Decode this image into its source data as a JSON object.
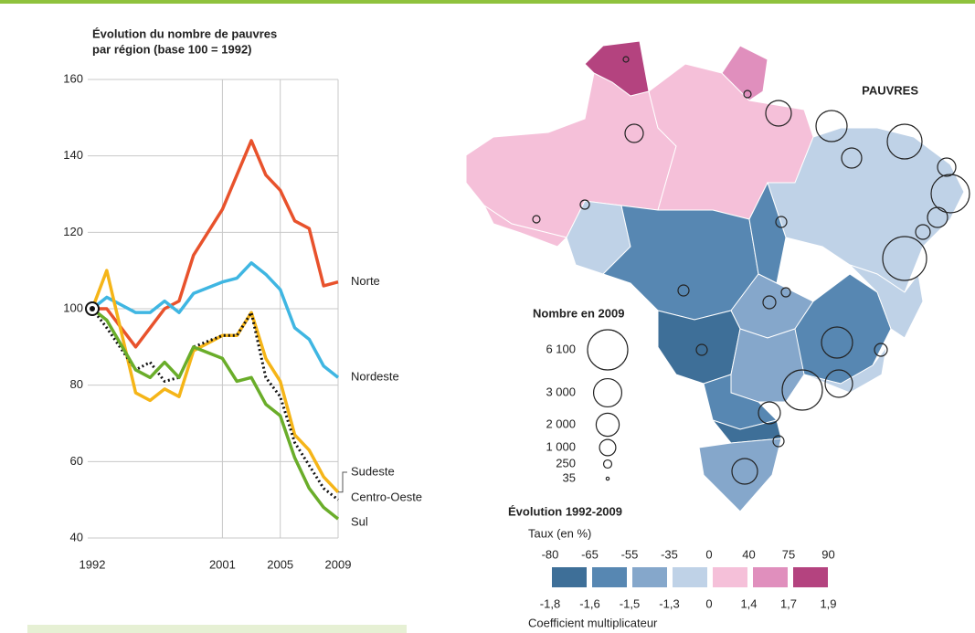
{
  "chart_data": {
    "type": "line",
    "title_lines": [
      "Évolution du nombre de pauvres",
      "par région (base 100 = 1992)"
    ],
    "x": [
      1992,
      1993,
      1995,
      1996,
      1997,
      1998,
      1999,
      2001,
      2002,
      2003,
      2004,
      2005,
      2006,
      2007,
      2008,
      2009
    ],
    "xlim": [
      1992,
      2009
    ],
    "xticks": [
      1992,
      2001,
      2005,
      2009
    ],
    "ylim": [
      40,
      160
    ],
    "yticks": [
      40,
      60,
      80,
      100,
      120,
      140,
      160
    ],
    "grid": true,
    "series": [
      {
        "name": "Norte",
        "color": "#e8522c",
        "dash": false,
        "values": [
          100,
          100,
          90,
          95,
          100,
          102,
          114,
          126,
          135,
          144,
          135,
          131,
          123,
          121,
          106,
          107
        ]
      },
      {
        "name": "Nordeste",
        "color": "#3fb6e2",
        "dash": false,
        "values": [
          100,
          103,
          99,
          99,
          102,
          99,
          104,
          107,
          108,
          112,
          109,
          105,
          95,
          92,
          85,
          82
        ]
      },
      {
        "name": "Sudeste",
        "color": "#f5b518",
        "dash": false,
        "values": [
          100,
          110,
          78,
          76,
          79,
          77,
          89,
          93,
          93,
          99,
          87,
          81,
          67,
          63,
          56,
          52
        ]
      },
      {
        "name": "Centro-Oeste",
        "color": "#111111",
        "dash": true,
        "values": [
          100,
          95,
          84,
          86,
          81,
          82,
          90,
          93,
          93,
          99,
          82,
          77,
          65,
          59,
          53,
          50
        ]
      },
      {
        "name": "Sul",
        "color": "#6aad2a",
        "dash": false,
        "values": [
          100,
          97,
          84,
          82,
          86,
          82,
          90,
          87,
          81,
          82,
          75,
          72,
          61,
          53,
          48,
          45
        ]
      }
    ]
  },
  "map": {
    "title": "PAUVRES",
    "size_legend": {
      "title": "Nombre en 2009",
      "values": [
        {
          "value": 6100,
          "label": "6 100"
        },
        {
          "value": 3000,
          "label": "3 000"
        },
        {
          "value": 2000,
          "label": "2 000"
        },
        {
          "value": 1000,
          "label": "1 000"
        },
        250,
        35
      ]
    },
    "color_legend": {
      "title": "Évolution 1992-2009",
      "rate_title": "Taux (en %)",
      "rates": [
        -80,
        -65,
        -55,
        -35,
        0,
        40,
        75,
        90
      ],
      "coefficients": [
        {
          "value": -1.8,
          "label": "-1,8"
        },
        {
          "value": -1.6,
          "label": "-1,6"
        },
        {
          "value": -1.5,
          "label": "-1,5"
        },
        {
          "value": -1.3,
          "label": "-1,3"
        },
        0,
        {
          "value": 1.4,
          "label": "1,4"
        },
        {
          "value": 1.7,
          "label": "1,7"
        },
        {
          "value": 1.9,
          "label": "1,9"
        }
      ],
      "colors": [
        "#3e6f98",
        "#5787b2",
        "#85a7cb",
        "#bfd2e7",
        "#f5c0d9",
        "#e08fbd",
        "#b4437f"
      ],
      "coefficient_title": "Coefficient multiplicateur"
    }
  }
}
